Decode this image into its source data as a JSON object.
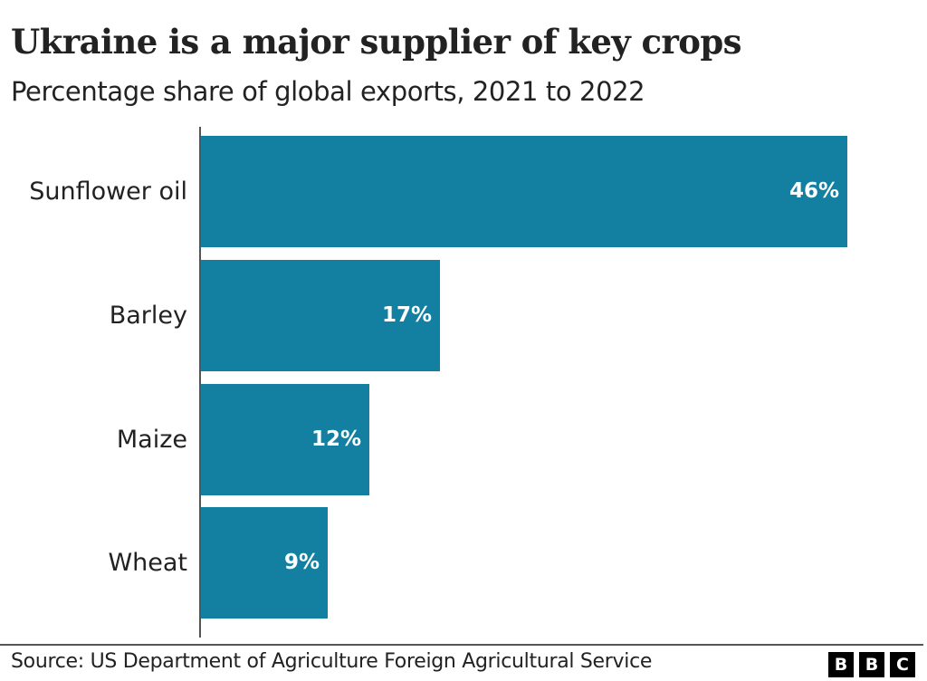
{
  "header": {
    "title": "Ukraine is a major supplier of key crops",
    "subtitle": "Percentage share of global exports, 2021 to 2022"
  },
  "footer": {
    "source": "Source: US Department of Agriculture Foreign Agricultural Service",
    "logo_letters": [
      "B",
      "B",
      "C"
    ]
  },
  "colors": {
    "bar": "#1380A1",
    "text": "#222222",
    "axis": "#555555",
    "bar_label": "#ffffff"
  },
  "bars": [
    {
      "label": "Sunflower oil",
      "value": 46,
      "value_label": "46%"
    },
    {
      "label": "Barley",
      "value": 17,
      "value_label": "17%"
    },
    {
      "label": "Maize",
      "value": 12,
      "value_label": "12%"
    },
    {
      "label": "Wheat",
      "value": 9,
      "value_label": "9%"
    }
  ],
  "chart_data": {
    "type": "bar",
    "orientation": "horizontal",
    "title": "Ukraine is a major supplier of key crops",
    "subtitle": "Percentage share of global exports, 2021 to 2022",
    "categories": [
      "Sunflower oil",
      "Barley",
      "Maize",
      "Wheat"
    ],
    "values": [
      46,
      17,
      12,
      9
    ],
    "value_labels": [
      "46%",
      "17%",
      "12%",
      "9%"
    ],
    "xlabel": "",
    "ylabel": "",
    "unit": "%",
    "grid": false,
    "legend": null,
    "source": "Source: US Department of Agriculture Foreign Agricultural Service"
  }
}
